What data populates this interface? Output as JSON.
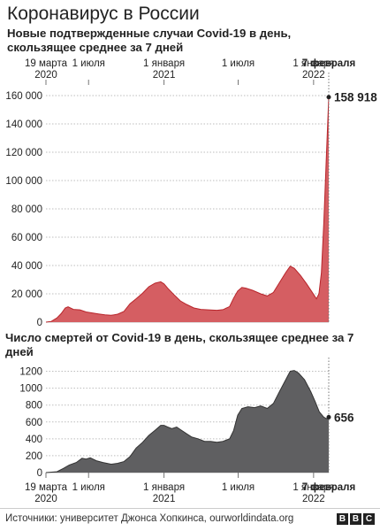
{
  "header": {
    "title": "Коронавирус в России",
    "subtitle": "Новые подтвержденные случаи Covid-19 в день, скользящее среднее за 7 дней"
  },
  "footer": {
    "source": "Источники: университет Джонса Хопкинса, ourworldindata.org",
    "logo_letters": [
      "B",
      "B",
      "C"
    ]
  },
  "colors": {
    "cases_fill": "#d55e62",
    "cases_line": "#b8252b",
    "deaths_fill": "#5f5f61",
    "deaths_line": "#333333",
    "grid": "#bdbdbd",
    "text": "#222222"
  },
  "chart_data": [
    {
      "type": "area",
      "title": "Новые подтвержденные случаи Covid-19 в день, скользящее среднее за 7 дней",
      "x_format": "date",
      "x_ticks": [
        {
          "date": "2020-03-19",
          "label": "19 марта\n2020"
        },
        {
          "date": "2020-07-01",
          "label": "1 июля"
        },
        {
          "date": "2021-01-01",
          "label": "1 января\n2021"
        },
        {
          "date": "2021-07-01",
          "label": "1 июля"
        },
        {
          "date": "2022-01-01",
          "label": "1 января\n2022"
        }
      ],
      "end_label": "7 февраля",
      "xlim": [
        "2020-03-19",
        "2022-02-07"
      ],
      "ylim": [
        0,
        160000
      ],
      "y_ticks": [
        0,
        20000,
        40000,
        60000,
        80000,
        100000,
        120000,
        140000,
        160000
      ],
      "y_tick_labels": [
        "0",
        "20 000",
        "40 000",
        "60 000",
        "80 000",
        "100 000",
        "120 000",
        "140 000",
        "160 000"
      ],
      "annotation": {
        "date": "2022-02-07",
        "value": 158918,
        "label": "158 918"
      },
      "series": [
        {
          "points": [
            [
              "2020-03-19",
              0
            ],
            [
              "2020-04-01",
              500
            ],
            [
              "2020-04-15",
              3000
            ],
            [
              "2020-04-25",
              6000
            ],
            [
              "2020-05-05",
              10000
            ],
            [
              "2020-05-12",
              10800
            ],
            [
              "2020-05-25",
              9000
            ],
            [
              "2020-06-10",
              8700
            ],
            [
              "2020-06-25",
              7200
            ],
            [
              "2020-07-10",
              6500
            ],
            [
              "2020-07-25",
              5800
            ],
            [
              "2020-08-10",
              5100
            ],
            [
              "2020-08-25",
              4800
            ],
            [
              "2020-09-10",
              5600
            ],
            [
              "2020-09-25",
              7500
            ],
            [
              "2020-10-10",
              13000
            ],
            [
              "2020-10-25",
              16500
            ],
            [
              "2020-11-10",
              20500
            ],
            [
              "2020-11-25",
              25000
            ],
            [
              "2020-12-10",
              27500
            ],
            [
              "2020-12-24",
              28500
            ],
            [
              "2021-01-01",
              27000
            ],
            [
              "2021-01-10",
              24000
            ],
            [
              "2021-01-25",
              19500
            ],
            [
              "2021-02-10",
              15000
            ],
            [
              "2021-02-25",
              12500
            ],
            [
              "2021-03-15",
              10000
            ],
            [
              "2021-04-01",
              9000
            ],
            [
              "2021-04-20",
              8700
            ],
            [
              "2021-05-10",
              8400
            ],
            [
              "2021-05-25",
              8800
            ],
            [
              "2021-06-10",
              11000
            ],
            [
              "2021-06-20",
              17000
            ],
            [
              "2021-06-30",
              22000
            ],
            [
              "2021-07-10",
              24500
            ],
            [
              "2021-07-20",
              24000
            ],
            [
              "2021-08-05",
              22500
            ],
            [
              "2021-08-25",
              20000
            ],
            [
              "2021-09-10",
              18500
            ],
            [
              "2021-09-25",
              21000
            ],
            [
              "2021-10-10",
              28000
            ],
            [
              "2021-10-25",
              35000
            ],
            [
              "2021-11-05",
              39500
            ],
            [
              "2021-11-15",
              38000
            ],
            [
              "2021-11-30",
              33000
            ],
            [
              "2021-12-15",
              27000
            ],
            [
              "2021-12-30",
              20500
            ],
            [
              "2022-01-08",
              16500
            ],
            [
              "2022-01-14",
              20000
            ],
            [
              "2022-01-20",
              35000
            ],
            [
              "2022-01-26",
              70000
            ],
            [
              "2022-02-01",
              115000
            ],
            [
              "2022-02-07",
              158918
            ]
          ]
        }
      ]
    },
    {
      "type": "area",
      "title": "Число смертей от Covid-19 в день, скользящее среднее за 7 дней",
      "x_format": "date",
      "x_ticks": [
        {
          "date": "2020-03-19",
          "label": "19 марта\n2020"
        },
        {
          "date": "2020-07-01",
          "label": "1 июля"
        },
        {
          "date": "2021-01-01",
          "label": "1 января\n2021"
        },
        {
          "date": "2021-07-01",
          "label": "1 июля"
        },
        {
          "date": "2022-01-01",
          "label": "1 января\n2022"
        }
      ],
      "end_label": "7 февраля",
      "xlim": [
        "2020-03-19",
        "2022-02-07"
      ],
      "ylim": [
        0,
        1300
      ],
      "y_ticks": [
        0,
        200,
        400,
        600,
        800,
        1000,
        1200
      ],
      "y_tick_labels": [
        "0",
        "200",
        "400",
        "600",
        "800",
        "1000",
        "1200"
      ],
      "annotation": {
        "date": "2022-02-07",
        "value": 656,
        "label": "656"
      },
      "series": [
        {
          "points": [
            [
              "2020-03-19",
              0
            ],
            [
              "2020-04-15",
              10
            ],
            [
              "2020-05-01",
              50
            ],
            [
              "2020-05-15",
              90
            ],
            [
              "2020-06-01",
              120
            ],
            [
              "2020-06-15",
              170
            ],
            [
              "2020-06-25",
              160
            ],
            [
              "2020-07-05",
              175
            ],
            [
              "2020-07-20",
              140
            ],
            [
              "2020-08-05",
              120
            ],
            [
              "2020-08-25",
              100
            ],
            [
              "2020-09-10",
              110
            ],
            [
              "2020-09-25",
              130
            ],
            [
              "2020-10-10",
              190
            ],
            [
              "2020-10-25",
              290
            ],
            [
              "2020-11-10",
              360
            ],
            [
              "2020-11-25",
              440
            ],
            [
              "2020-12-10",
              500
            ],
            [
              "2020-12-24",
              560
            ],
            [
              "2021-01-01",
              560
            ],
            [
              "2021-01-10",
              540
            ],
            [
              "2021-01-20",
              520
            ],
            [
              "2021-02-01",
              540
            ],
            [
              "2021-02-10",
              510
            ],
            [
              "2021-02-25",
              460
            ],
            [
              "2021-03-10",
              420
            ],
            [
              "2021-03-25",
              400
            ],
            [
              "2021-04-10",
              370
            ],
            [
              "2021-04-25",
              370
            ],
            [
              "2021-05-10",
              360
            ],
            [
              "2021-05-25",
              370
            ],
            [
              "2021-06-10",
              400
            ],
            [
              "2021-06-20",
              500
            ],
            [
              "2021-06-30",
              680
            ],
            [
              "2021-07-10",
              760
            ],
            [
              "2021-07-25",
              780
            ],
            [
              "2021-08-10",
              770
            ],
            [
              "2021-08-25",
              790
            ],
            [
              "2021-09-10",
              760
            ],
            [
              "2021-09-25",
              820
            ],
            [
              "2021-10-10",
              960
            ],
            [
              "2021-10-25",
              1100
            ],
            [
              "2021-11-05",
              1200
            ],
            [
              "2021-11-15",
              1210
            ],
            [
              "2021-11-25",
              1180
            ],
            [
              "2021-12-10",
              1100
            ],
            [
              "2021-12-25",
              960
            ],
            [
              "2022-01-05",
              840
            ],
            [
              "2022-01-15",
              720
            ],
            [
              "2022-01-25",
              660
            ],
            [
              "2022-02-01",
              640
            ],
            [
              "2022-02-07",
              656
            ]
          ]
        }
      ]
    }
  ]
}
